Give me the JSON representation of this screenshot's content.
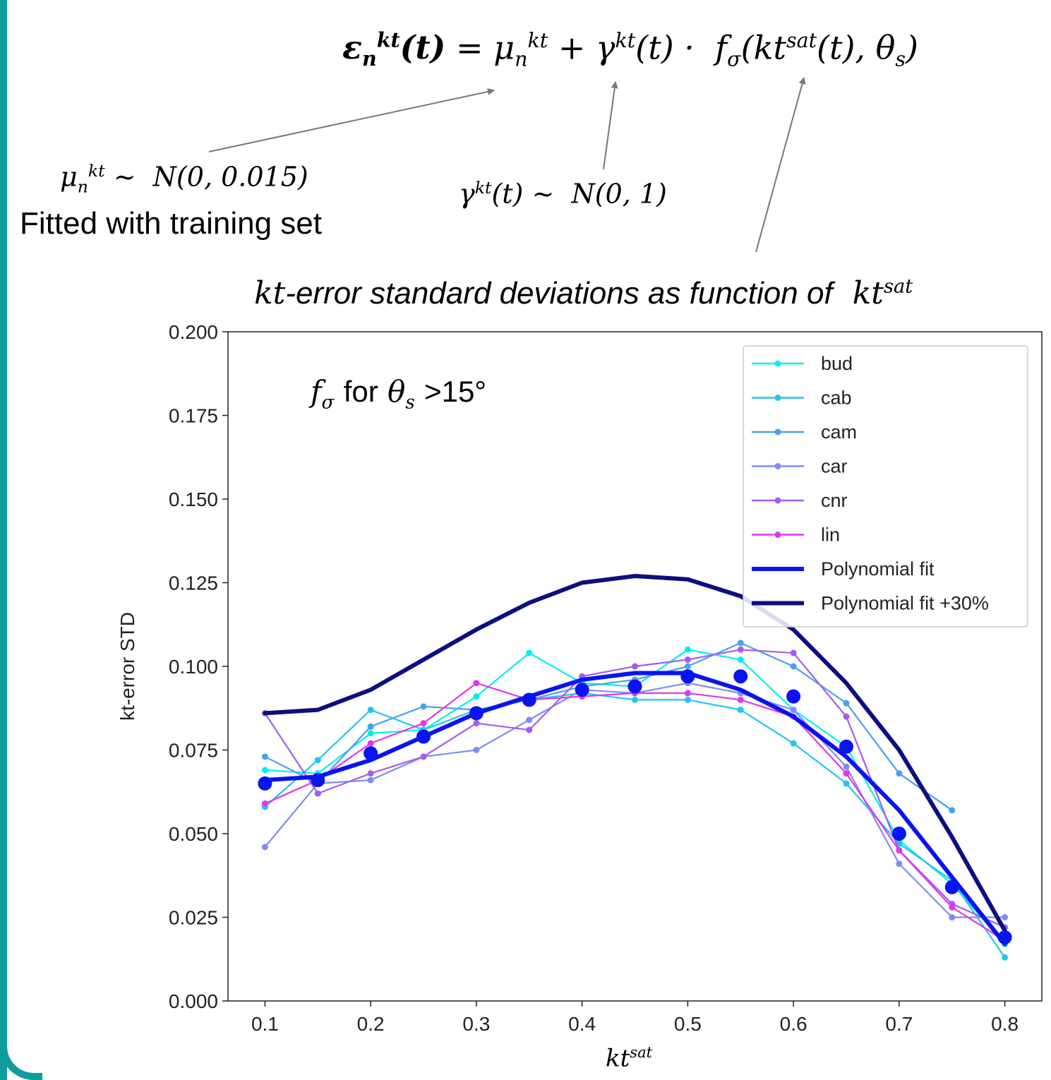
{
  "annotations": {
    "formula_html": "<b>ε<sub>n</sub><sup>kt</sup>(t)</b> = μ<sub>n</sub><sup>kt</sup> + γ<sup>kt</sup>(t) · &nbsp;f<sub>σ</sub>(kt<sup>sat</sup>(t), θ<sub>s</sub>)",
    "mu_dist_html": "μ<sub>n</sub><sup>kt</sup> ~ &nbsp;N(0, 0.015)",
    "mu_note": "Fitted with training set",
    "gamma_dist_html": "γ<sup>kt</sup>(t) ~ &nbsp;N(0, 1)",
    "subtitle_html": "kt<span class=\"it\">-error standard deviations as function of</span> &nbsp;kt<sup>sat</sup>"
  },
  "chart_data": {
    "type": "line",
    "title": "",
    "inset_label_html": "f<sub>σ</sub> <span style=\"font-family:'Liberation Sans',sans-serif;font-style:normal\">for</span> θ<sub>s</sub> <span style=\"font-family:'Liberation Sans',sans-serif;font-style:normal\">&gt;15°</span>",
    "xlabel_html": "kt<sup>sat</sup>",
    "ylabel": "kt-error STD",
    "xlim": [
      0.065,
      0.835
    ],
    "ylim": [
      0.0,
      0.2
    ],
    "xticks": [
      "0.1",
      "0.2",
      "0.3",
      "0.4",
      "0.5",
      "0.6",
      "0.7",
      "0.8"
    ],
    "yticks": [
      "0.000",
      "0.025",
      "0.050",
      "0.075",
      "0.100",
      "0.125",
      "0.150",
      "0.175",
      "0.200"
    ],
    "legend_position": "top-right",
    "x": [
      0.1,
      0.15,
      0.2,
      0.25,
      0.3,
      0.35,
      0.4,
      0.45,
      0.5,
      0.55,
      0.6,
      0.65,
      0.7,
      0.75,
      0.8
    ],
    "series": [
      {
        "name": "bud",
        "color": "#00f0f0",
        "style": "thin",
        "values": [
          0.069,
          0.068,
          0.08,
          0.081,
          0.091,
          0.104,
          0.095,
          0.094,
          0.105,
          0.102,
          0.087,
          0.076,
          0.048,
          0.035,
          0.017
        ]
      },
      {
        "name": "cab",
        "color": "#22c6f0",
        "style": "thin",
        "values": [
          0.058,
          0.072,
          0.087,
          0.081,
          0.087,
          0.09,
          0.092,
          0.09,
          0.09,
          0.087,
          0.077,
          0.065,
          0.047,
          0.036,
          0.013
        ]
      },
      {
        "name": "cam",
        "color": "#4aa0f2",
        "style": "thin",
        "values": [
          0.073,
          0.065,
          0.082,
          0.088,
          0.087,
          0.09,
          0.094,
          0.096,
          0.1,
          0.107,
          0.1,
          0.089,
          0.068,
          0.057,
          null
        ]
      },
      {
        "name": "car",
        "color": "#7f8cf2",
        "style": "thin",
        "values": [
          0.046,
          0.065,
          0.066,
          0.073,
          0.075,
          0.084,
          0.093,
          0.092,
          0.095,
          0.092,
          0.087,
          0.07,
          0.041,
          0.025,
          0.025
        ]
      },
      {
        "name": "cnr",
        "color": "#a45cf0",
        "style": "thin",
        "values": [
          0.086,
          0.062,
          0.068,
          0.073,
          0.083,
          0.081,
          0.097,
          0.1,
          0.102,
          0.105,
          0.104,
          0.085,
          0.045,
          0.029,
          0.022
        ]
      },
      {
        "name": "lin",
        "color": "#e236ee",
        "style": "thin",
        "values": [
          0.059,
          0.066,
          0.077,
          0.083,
          0.095,
          0.09,
          0.091,
          0.092,
          0.092,
          0.09,
          0.085,
          0.068,
          0.045,
          0.028,
          0.018
        ]
      },
      {
        "name": "Polynomial fit",
        "color": "#0a14f0",
        "style": "thick",
        "values": [
          0.066,
          0.067,
          0.072,
          0.079,
          0.086,
          0.091,
          0.096,
          0.098,
          0.098,
          0.093,
          0.085,
          0.073,
          0.057,
          0.037,
          0.017
        ]
      },
      {
        "name": "Polynomial fit +30%",
        "color": "#0c0f7e",
        "style": "thick",
        "values": [
          0.086,
          0.087,
          0.093,
          0.102,
          0.111,
          0.119,
          0.125,
          0.127,
          0.126,
          0.121,
          0.111,
          0.095,
          0.075,
          0.049,
          0.021
        ]
      }
    ],
    "mean_points": {
      "color": "#0a14f0",
      "values": [
        0.065,
        0.066,
        0.074,
        0.079,
        0.086,
        0.09,
        0.093,
        0.094,
        0.097,
        0.097,
        0.091,
        0.076,
        0.05,
        0.034,
        0.019
      ]
    }
  }
}
